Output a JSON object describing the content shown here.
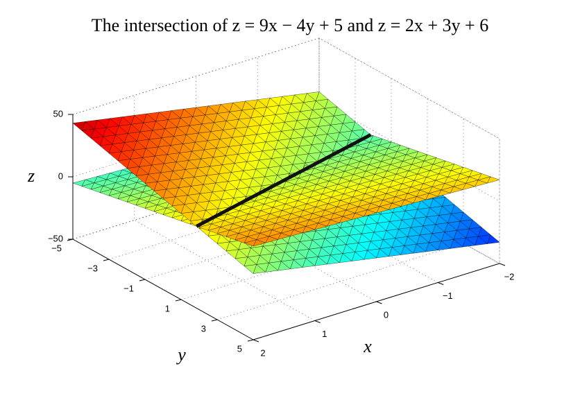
{
  "chart_data": {
    "type": "surface3d",
    "title": "The intersection of z = 9x − 4y + 5 and z = 2x + 3y + 6",
    "xlabel": "x",
    "ylabel": "y",
    "zlabel": "z",
    "surfaces": [
      {
        "a": 9,
        "b": -4,
        "c": 5
      },
      {
        "a": 2,
        "b": 3,
        "c": 6
      }
    ],
    "intersection_line": true,
    "line_color": "#111111",
    "colormap": "jet",
    "grid": true,
    "xlim": [
      -2,
      2
    ],
    "ylim": [
      -5,
      5
    ],
    "zlim": [
      -50,
      50
    ],
    "xticks": [
      {
        "value": -2,
        "label": "−2"
      },
      {
        "value": -1,
        "label": "−1"
      },
      0,
      1,
      2
    ],
    "yticks": [
      {
        "value": -5,
        "label": "−5"
      },
      {
        "value": -3,
        "label": "−3"
      },
      {
        "value": -1,
        "label": "−1"
      },
      1,
      3,
      5
    ],
    "zticks": [
      {
        "value": -50,
        "label": "−50"
      },
      0,
      50
    ]
  }
}
